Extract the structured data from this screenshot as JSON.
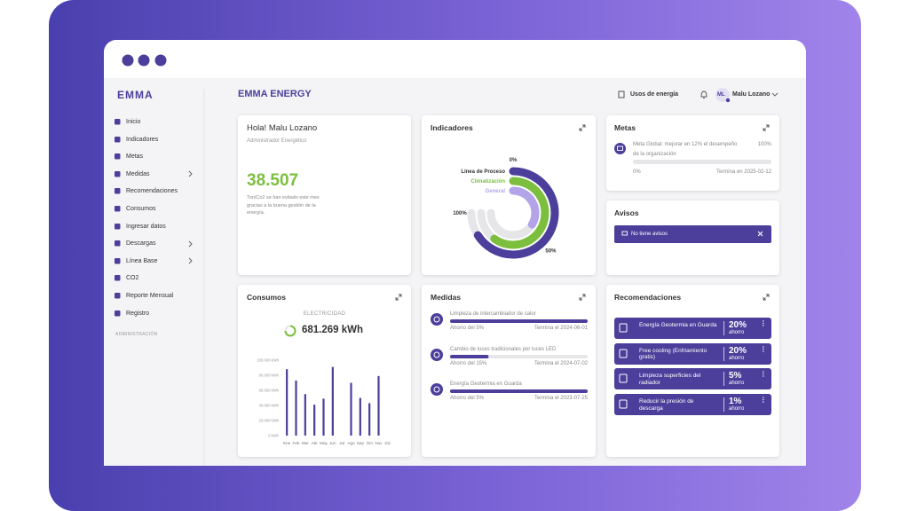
{
  "app": {
    "logo": "EMMA",
    "brand": "EMMA ENERGY",
    "energy_uses": "Usos de energía",
    "avatar": "ML",
    "user": "Malu Lozano"
  },
  "sidebar": {
    "items": [
      {
        "label": "Inicio"
      },
      {
        "label": "Indicadores"
      },
      {
        "label": "Metas"
      },
      {
        "label": "Medidas",
        "expandable": true
      },
      {
        "label": "Recomendaciones"
      },
      {
        "label": "Consumos"
      },
      {
        "label": "Ingresar datos"
      },
      {
        "label": "Descargas",
        "expandable": true
      },
      {
        "label": "Línea Base",
        "expandable": true
      },
      {
        "label": "CO2"
      },
      {
        "label": "Reporte Mensual"
      },
      {
        "label": "Registro"
      }
    ],
    "section": "ADMINISTRACIÓN"
  },
  "welcome": {
    "title": "Hola! Malu Lozano",
    "role": "Administrador Energético",
    "value": "38.507",
    "caption": "Ton/Co2 se han evitado este mes gracias a la buena gestión de la energía."
  },
  "indicadores": {
    "title": "Indicadores"
  },
  "metas": {
    "title": "Metas",
    "goal": "Meta Global: mejorar en 12% el desempeño de la organización",
    "target": "100%",
    "start": "0%",
    "ends": "Termina en 2025-02-12",
    "progress": 0
  },
  "avisos": {
    "title": "Avisos",
    "message": "No tiene avisos"
  },
  "consumos": {
    "title": "Consumos",
    "subtitle": "ELECTRICIDAD",
    "total": "681.269 kWh"
  },
  "medidas": {
    "title": "Medidas",
    "items": [
      {
        "title": "Limpieza de intercambiador de calor",
        "progress": 100,
        "savings": "Ahorro del 5%",
        "ends": "Termina el 2024-06-01"
      },
      {
        "title": "Cambio de luces tradicionales por luces LED",
        "progress": 28,
        "savings": "Ahorro del 15%",
        "ends": "Termina el 2024-07-02"
      },
      {
        "title": "Energía Geotermia en Guarda",
        "progress": 100,
        "savings": "Ahorro del 5%",
        "ends": "Termina el 2023-07-25"
      }
    ]
  },
  "recomendaciones": {
    "title": "Recomendaciones",
    "items": [
      {
        "title": "Energía Geotermia en Guarda",
        "percent": "20%",
        "unit": "ahorro"
      },
      {
        "title": "Free cooling (Enfriamiento gratis)",
        "percent": "20%",
        "unit": "ahorro"
      },
      {
        "title": "Limpieza superficies del radiador",
        "percent": "5%",
        "unit": "ahorro"
      },
      {
        "title": "Reducir la presión de descarga",
        "percent": "1%",
        "unit": "ahorro"
      }
    ]
  },
  "chart_data": [
    {
      "type": "radial-bar",
      "range": [
        0,
        100
      ],
      "series": [
        {
          "name": "Línea de Proceso",
          "color": "#4b3f9b",
          "values": [
            88
          ]
        },
        {
          "name": "Climatización",
          "color": "#7cbf3f",
          "values": [
            80
          ]
        },
        {
          "name": "General",
          "color": "#b3a3e8",
          "values": [
            45
          ]
        }
      ],
      "ticks": [
        {
          "value": 0,
          "label": "0%"
        },
        {
          "value": 50,
          "label": "50%"
        },
        {
          "value": 100,
          "label": "100%"
        }
      ]
    },
    {
      "type": "bar",
      "color": "#4b3f9b",
      "categories": [
        "Ene",
        "Feb",
        "Mar",
        "Abr",
        "May",
        "Jun",
        "Jul",
        "Ago",
        "Sep",
        "Oct",
        "Nov",
        "Dic"
      ],
      "values": [
        88000,
        73000,
        55000,
        41000,
        49000,
        91000,
        0,
        70000,
        50000,
        43000,
        79000,
        0
      ],
      "ylim": [
        0,
        100000
      ],
      "yticks": [
        {
          "value": 0,
          "label": "0 kWh"
        },
        {
          "value": 20000,
          "label": "20.000 kWh"
        },
        {
          "value": 40000,
          "label": "40.000 kWh"
        },
        {
          "value": 60000,
          "label": "60.000 kWh"
        },
        {
          "value": 80000,
          "label": "80.000 kWh"
        },
        {
          "value": 100000,
          "label": "100.000 kWh"
        }
      ]
    }
  ]
}
